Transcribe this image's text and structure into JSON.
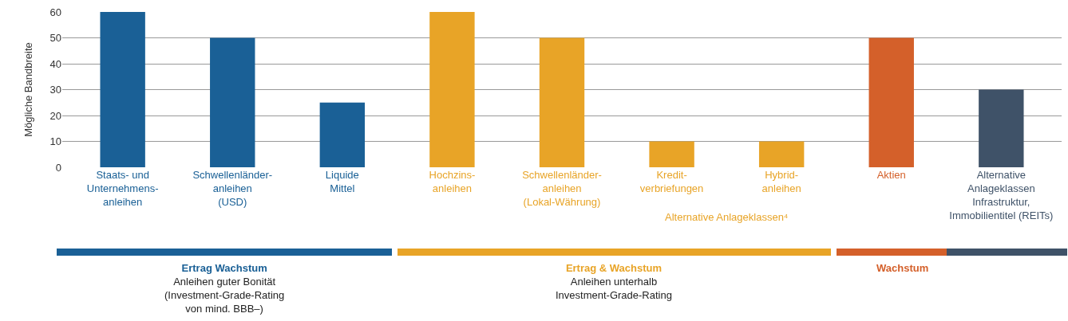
{
  "chart_data": {
    "type": "bar",
    "ylabel": "Mögliche Bandbreite",
    "categories": [
      "Staats- und\nUnternehmens-\nanleihen",
      "Schwellenländer-\nanleihen\n(USD)",
      "Liquide\nMittel",
      "Hochzins-\nanleihen",
      "Schwellenländer-\nanleihen\n(Lokal-Währung)",
      "Kredit-\nverbriefungen",
      "Hybrid-\nanleihen",
      "Aktien",
      "Alternative\nAnlageklassen\nInfrastruktur,\nImmobilientitel (REITs)"
    ],
    "values": [
      60,
      50,
      25,
      60,
      50,
      10,
      10,
      50,
      30
    ],
    "colors": [
      "#1a6096",
      "#1a6096",
      "#1a6096",
      "#e8a427",
      "#e8a427",
      "#e8a427",
      "#e8a427",
      "#d4602a",
      "#3f5268"
    ],
    "ylim": [
      0,
      60
    ],
    "yticks": [
      0,
      10,
      20,
      30,
      40,
      50,
      60
    ],
    "grid": "y",
    "annotations": [
      "Alternative Anlageklassen⁴",
      "Ertrag Wachstum\nAnleihen guter Bonität\n(Investment-Grade-Rating\nvon mind. BBB–)",
      "Ertrag & Wachstum\nAnleihen unterhalb\nInvestment-Grade-Rating",
      "Wachstum"
    ]
  }
}
